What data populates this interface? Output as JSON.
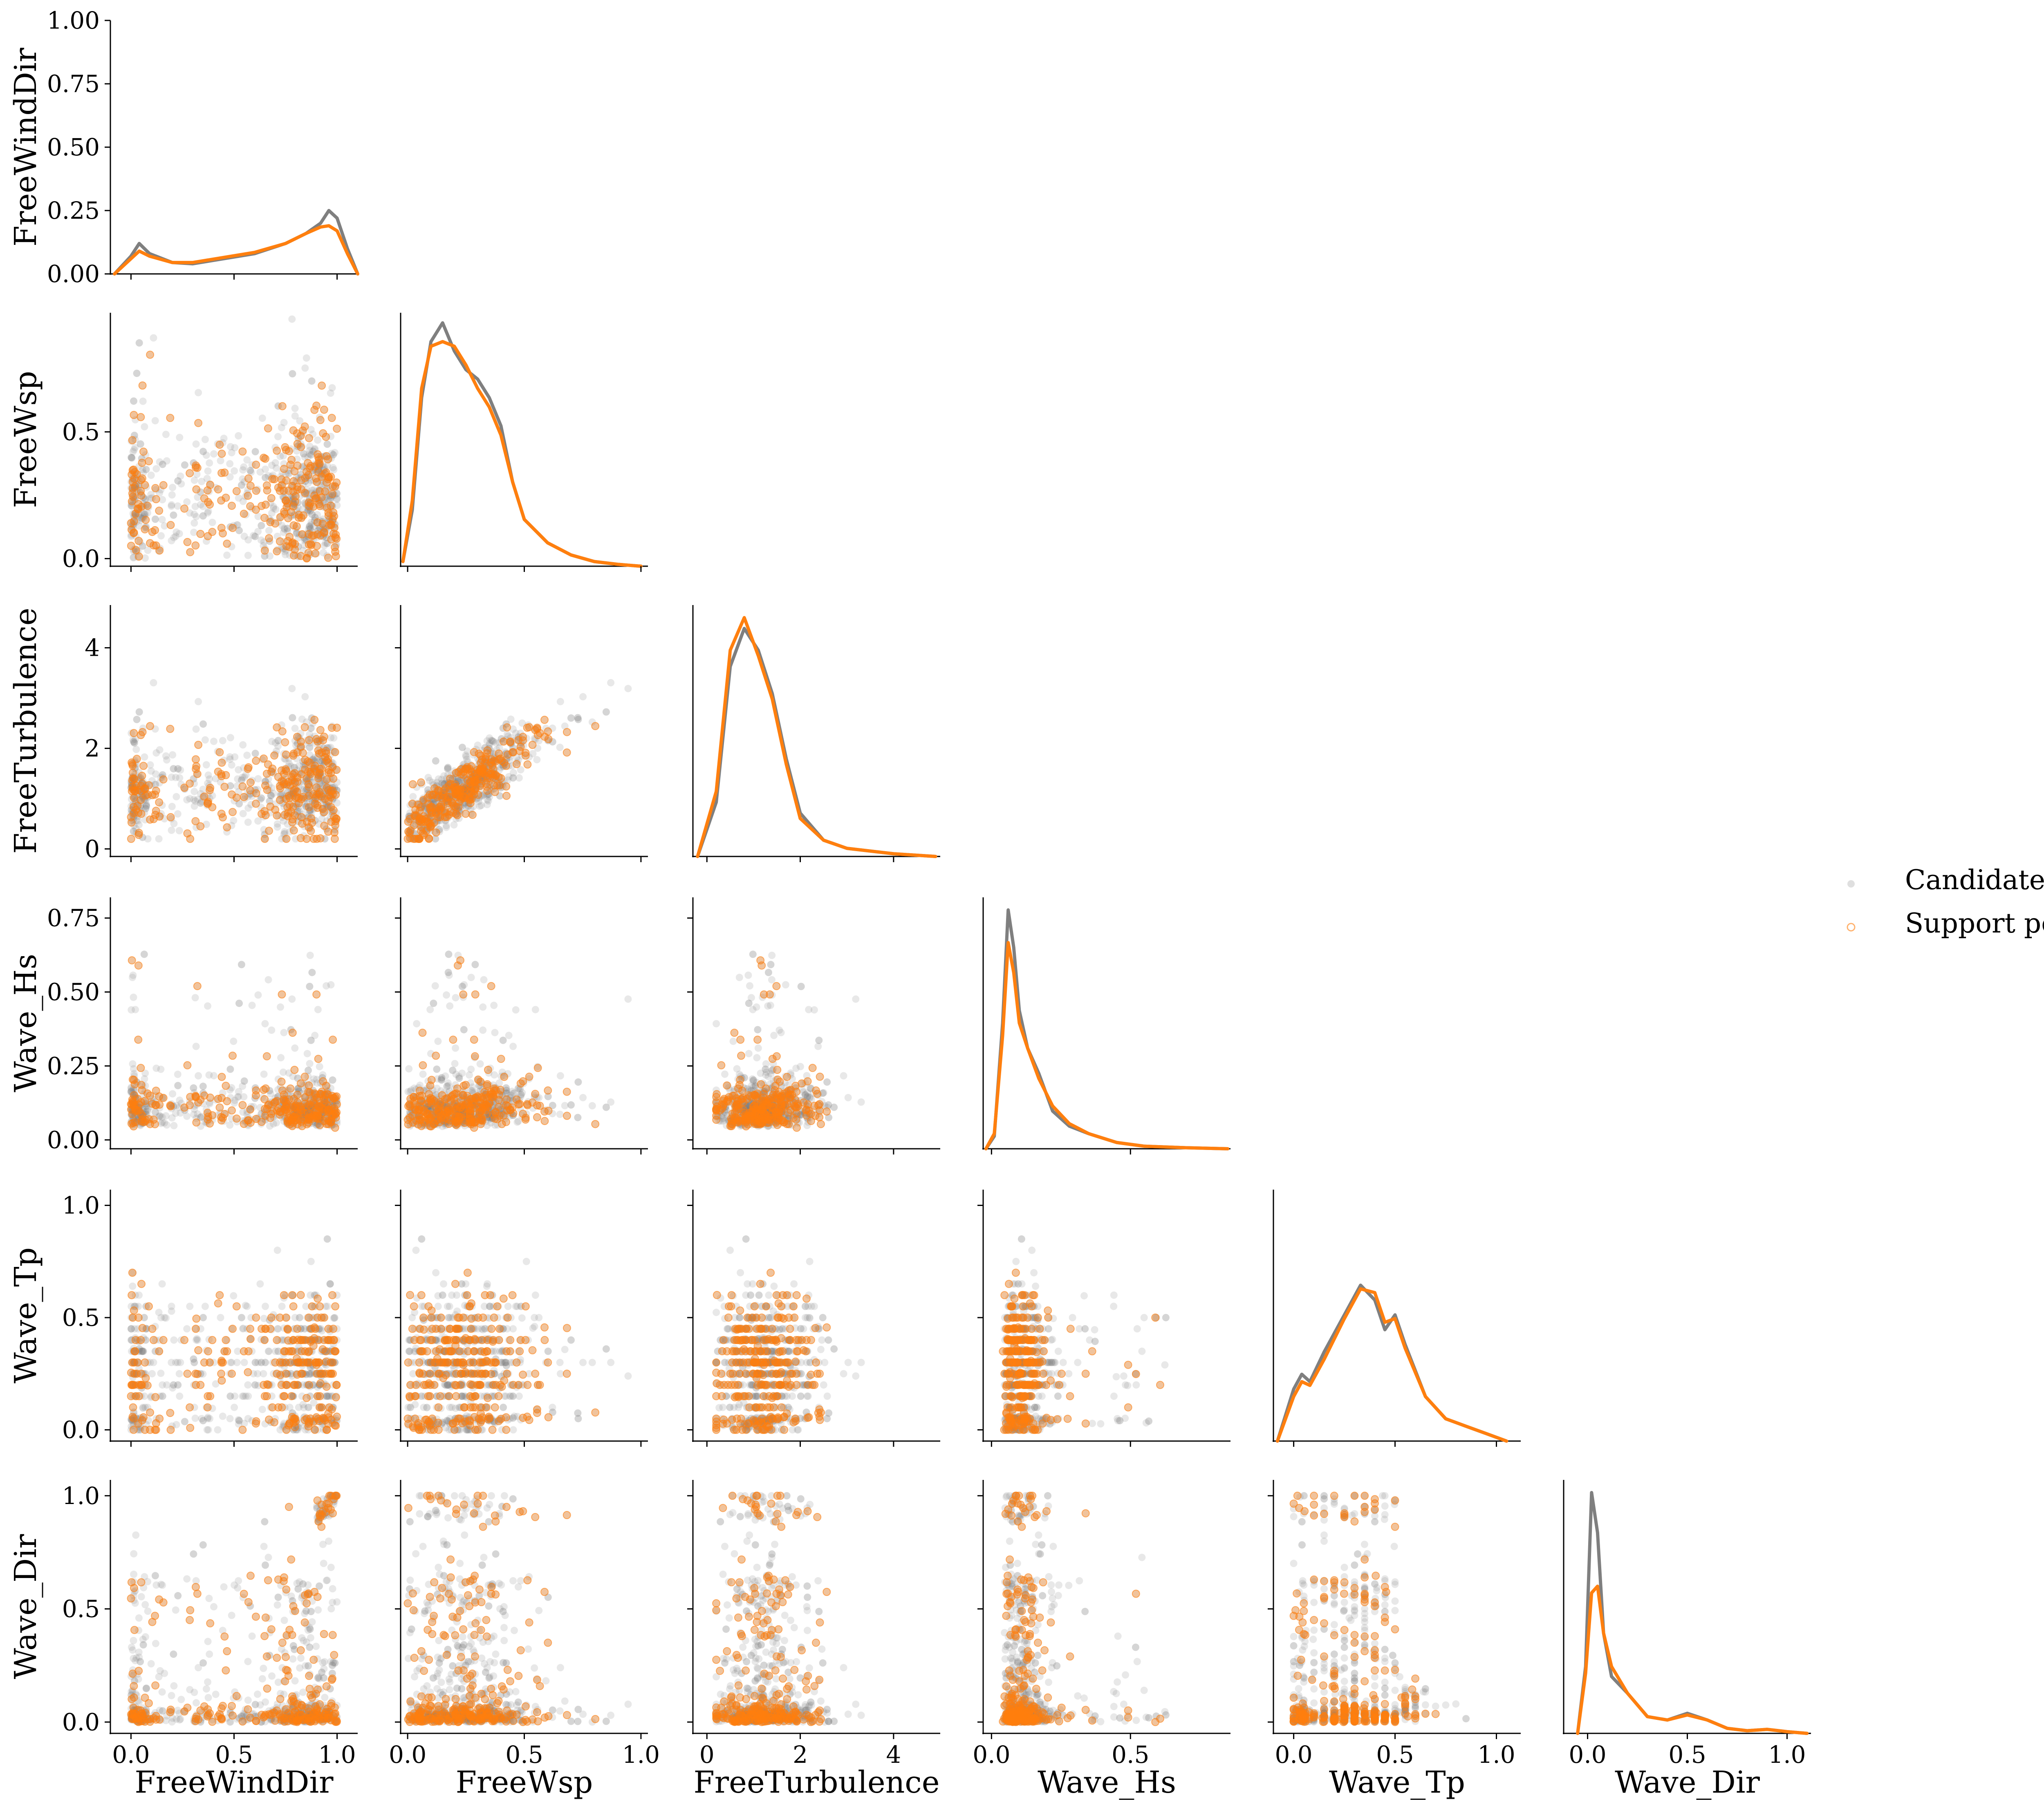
{
  "chart_data": {
    "type": "scatter",
    "title": "",
    "variables": [
      {
        "name": "FreeWindDir",
        "range": [
          -0.1,
          1.1
        ],
        "ticks": [
          "0.0",
          "0.5",
          "1.0"
        ],
        "tick_values": [
          0,
          0.5,
          1.0
        ]
      },
      {
        "name": "FreeWsp",
        "range": [
          -0.03,
          1.03
        ],
        "ticks": [
          "0.0",
          "0.5",
          "1.0"
        ],
        "tick_values": [
          0,
          0.5,
          1.0
        ]
      },
      {
        "name": "FreeTurbulence",
        "range": [
          -0.3,
          5.0
        ],
        "ticks": [
          "0",
          "2",
          "4"
        ],
        "tick_values": [
          0,
          2,
          4
        ]
      },
      {
        "name": "Wave_Hs",
        "range": [
          -0.03,
          0.86
        ],
        "ticks": [
          "0.0",
          "0.5"
        ],
        "tick_values": [
          0,
          0.5
        ]
      },
      {
        "name": "Wave_Tp",
        "range": [
          -0.1,
          1.12
        ],
        "ticks": [
          "0.0",
          "0.5",
          "1.0"
        ],
        "tick_values": [
          0,
          0.5,
          1.0
        ]
      },
      {
        "name": "Wave_Dir",
        "range": [
          -0.12,
          1.12
        ],
        "ticks": [
          "0.0",
          "0.5",
          "1.0"
        ],
        "tick_values": [
          0,
          0.5,
          1.0
        ]
      }
    ],
    "row_axes": [
      {
        "range": [
          0,
          1.0
        ],
        "ticks": [
          "0.00",
          "0.25",
          "0.50",
          "0.75",
          "1.00"
        ],
        "tick_values": [
          0,
          0.25,
          0.5,
          0.75,
          1.0
        ]
      },
      {
        "range": [
          -0.03,
          0.97
        ],
        "ticks": [
          "0.0",
          "0.5"
        ],
        "tick_values": [
          0,
          0.5
        ]
      },
      {
        "range": [
          -0.15,
          4.85
        ],
        "ticks": [
          "0",
          "2",
          "4"
        ],
        "tick_values": [
          0,
          2,
          4
        ]
      },
      {
        "range": [
          -0.03,
          0.82
        ],
        "ticks": [
          "0.00",
          "0.25",
          "0.50",
          "0.75"
        ],
        "tick_values": [
          0,
          0.25,
          0.5,
          0.75
        ]
      },
      {
        "range": [
          -0.05,
          1.07
        ],
        "ticks": [
          "0.0",
          "0.5",
          "1.0"
        ],
        "tick_values": [
          0,
          0.5,
          1.0
        ]
      },
      {
        "range": [
          -0.05,
          1.07
        ],
        "ticks": [
          "0.0",
          "0.5",
          "1.0"
        ],
        "tick_values": [
          0,
          0.5,
          1.0
        ]
      }
    ],
    "legend": {
      "placement": "right",
      "entries": [
        {
          "label": "Candidate",
          "color": "#7f7f7f"
        },
        {
          "label": "Support points",
          "color": "#ff7f0e"
        }
      ]
    },
    "series": [
      {
        "name": "Candidate",
        "color": "#7f7f7f"
      },
      {
        "name": "Support points",
        "color": "#ff7f0e"
      }
    ],
    "diagonal_kde": [
      {
        "variable": "FreeWindDir",
        "candidate": [
          [
            -0.08,
            0
          ],
          [
            0.0,
            0.07
          ],
          [
            0.04,
            0.12
          ],
          [
            0.09,
            0.08
          ],
          [
            0.2,
            0.045
          ],
          [
            0.3,
            0.04
          ],
          [
            0.45,
            0.06
          ],
          [
            0.6,
            0.08
          ],
          [
            0.75,
            0.12
          ],
          [
            0.85,
            0.16
          ],
          [
            0.92,
            0.2
          ],
          [
            0.96,
            0.25
          ],
          [
            1.0,
            0.22
          ],
          [
            1.05,
            0.1
          ],
          [
            1.1,
            0.0
          ]
        ],
        "support": [
          [
            -0.08,
            0
          ],
          [
            0.0,
            0.06
          ],
          [
            0.04,
            0.09
          ],
          [
            0.09,
            0.07
          ],
          [
            0.2,
            0.045
          ],
          [
            0.3,
            0.045
          ],
          [
            0.45,
            0.065
          ],
          [
            0.6,
            0.085
          ],
          [
            0.75,
            0.12
          ],
          [
            0.85,
            0.16
          ],
          [
            0.92,
            0.185
          ],
          [
            0.96,
            0.19
          ],
          [
            1.0,
            0.17
          ],
          [
            1.05,
            0.08
          ],
          [
            1.1,
            0.0
          ]
        ]
      },
      {
        "variable": "FreeWsp",
        "candidate": [
          [
            -0.02,
            0.005
          ],
          [
            0.02,
            0.06
          ],
          [
            0.06,
            0.18
          ],
          [
            0.1,
            0.24
          ],
          [
            0.15,
            0.26
          ],
          [
            0.2,
            0.23
          ],
          [
            0.25,
            0.21
          ],
          [
            0.3,
            0.2
          ],
          [
            0.35,
            0.18
          ],
          [
            0.4,
            0.15
          ],
          [
            0.45,
            0.09
          ],
          [
            0.5,
            0.05
          ],
          [
            0.6,
            0.025
          ],
          [
            0.7,
            0.012
          ],
          [
            0.8,
            0.005
          ],
          [
            0.9,
            0.002
          ],
          [
            1.0,
            0.0
          ]
        ],
        "support": [
          [
            -0.02,
            0.005
          ],
          [
            0.02,
            0.07
          ],
          [
            0.06,
            0.19
          ],
          [
            0.1,
            0.235
          ],
          [
            0.15,
            0.24
          ],
          [
            0.2,
            0.235
          ],
          [
            0.25,
            0.215
          ],
          [
            0.3,
            0.19
          ],
          [
            0.35,
            0.17
          ],
          [
            0.4,
            0.14
          ],
          [
            0.45,
            0.09
          ],
          [
            0.5,
            0.05
          ],
          [
            0.6,
            0.025
          ],
          [
            0.7,
            0.012
          ],
          [
            0.8,
            0.005
          ],
          [
            0.9,
            0.002
          ],
          [
            1.0,
            0.0
          ]
        ]
      },
      {
        "variable": "FreeTurbulence",
        "candidate": [
          [
            -0.2,
            0
          ],
          [
            0.2,
            0.1
          ],
          [
            0.5,
            0.35
          ],
          [
            0.8,
            0.42
          ],
          [
            1.1,
            0.38
          ],
          [
            1.4,
            0.3
          ],
          [
            1.7,
            0.18
          ],
          [
            2.0,
            0.08
          ],
          [
            2.5,
            0.03
          ],
          [
            3.0,
            0.015
          ],
          [
            4.0,
            0.005
          ],
          [
            4.9,
            0.0
          ]
        ],
        "support": [
          [
            -0.2,
            0
          ],
          [
            0.2,
            0.12
          ],
          [
            0.5,
            0.38
          ],
          [
            0.8,
            0.44
          ],
          [
            1.1,
            0.37
          ],
          [
            1.4,
            0.29
          ],
          [
            1.7,
            0.17
          ],
          [
            2.0,
            0.07
          ],
          [
            2.5,
            0.03
          ],
          [
            3.0,
            0.015
          ],
          [
            4.0,
            0.005
          ],
          [
            4.9,
            0.0
          ]
        ]
      },
      {
        "variable": "Wave_Hs",
        "candidate": [
          [
            -0.02,
            0.0
          ],
          [
            0.01,
            0.05
          ],
          [
            0.04,
            0.5
          ],
          [
            0.06,
            0.95
          ],
          [
            0.08,
            0.8
          ],
          [
            0.1,
            0.55
          ],
          [
            0.13,
            0.4
          ],
          [
            0.17,
            0.3
          ],
          [
            0.22,
            0.15
          ],
          [
            0.28,
            0.09
          ],
          [
            0.35,
            0.06
          ],
          [
            0.45,
            0.025
          ],
          [
            0.55,
            0.01
          ],
          [
            0.7,
            0.004
          ],
          [
            0.85,
            0.0
          ]
        ],
        "support": [
          [
            -0.02,
            0.0
          ],
          [
            0.01,
            0.06
          ],
          [
            0.04,
            0.45
          ],
          [
            0.06,
            0.82
          ],
          [
            0.08,
            0.7
          ],
          [
            0.1,
            0.5
          ],
          [
            0.13,
            0.4
          ],
          [
            0.17,
            0.28
          ],
          [
            0.22,
            0.17
          ],
          [
            0.28,
            0.1
          ],
          [
            0.35,
            0.06
          ],
          [
            0.45,
            0.025
          ],
          [
            0.55,
            0.01
          ],
          [
            0.7,
            0.004
          ],
          [
            0.85,
            0.0
          ]
        ]
      },
      {
        "variable": "Wave_Tp",
        "candidate": [
          [
            -0.08,
            0.0
          ],
          [
            0.0,
            0.07
          ],
          [
            0.04,
            0.09
          ],
          [
            0.08,
            0.08
          ],
          [
            0.15,
            0.12
          ],
          [
            0.25,
            0.17
          ],
          [
            0.33,
            0.21
          ],
          [
            0.4,
            0.19
          ],
          [
            0.45,
            0.15
          ],
          [
            0.5,
            0.17
          ],
          [
            0.55,
            0.13
          ],
          [
            0.65,
            0.06
          ],
          [
            0.75,
            0.03
          ],
          [
            0.85,
            0.02
          ],
          [
            0.95,
            0.01
          ],
          [
            1.05,
            0.0
          ]
        ],
        "support": [
          [
            -0.08,
            0.0
          ],
          [
            0.0,
            0.06
          ],
          [
            0.04,
            0.08
          ],
          [
            0.08,
            0.075
          ],
          [
            0.15,
            0.11
          ],
          [
            0.25,
            0.165
          ],
          [
            0.33,
            0.205
          ],
          [
            0.4,
            0.2
          ],
          [
            0.45,
            0.16
          ],
          [
            0.5,
            0.165
          ],
          [
            0.55,
            0.125
          ],
          [
            0.65,
            0.06
          ],
          [
            0.75,
            0.03
          ],
          [
            0.85,
            0.02
          ],
          [
            0.95,
            0.01
          ],
          [
            1.05,
            0.0
          ]
        ]
      },
      {
        "variable": "Wave_Dir",
        "candidate": [
          [
            -0.05,
            0.0
          ],
          [
            -0.01,
            0.2
          ],
          [
            0.02,
            0.72
          ],
          [
            0.05,
            0.6
          ],
          [
            0.08,
            0.3
          ],
          [
            0.12,
            0.17
          ],
          [
            0.2,
            0.12
          ],
          [
            0.3,
            0.05
          ],
          [
            0.4,
            0.04
          ],
          [
            0.5,
            0.06
          ],
          [
            0.6,
            0.04
          ],
          [
            0.7,
            0.015
          ],
          [
            0.8,
            0.008
          ],
          [
            0.9,
            0.012
          ],
          [
            1.0,
            0.005
          ],
          [
            1.1,
            0.0
          ]
        ],
        "support": [
          [
            -0.05,
            0.0
          ],
          [
            -0.01,
            0.18
          ],
          [
            0.02,
            0.42
          ],
          [
            0.05,
            0.44
          ],
          [
            0.08,
            0.3
          ],
          [
            0.12,
            0.2
          ],
          [
            0.2,
            0.12
          ],
          [
            0.3,
            0.05
          ],
          [
            0.4,
            0.04
          ],
          [
            0.5,
            0.055
          ],
          [
            0.6,
            0.04
          ],
          [
            0.7,
            0.015
          ],
          [
            0.8,
            0.008
          ],
          [
            0.9,
            0.012
          ],
          [
            1.0,
            0.005
          ],
          [
            1.1,
            0.0
          ]
        ]
      }
    ],
    "row0_kde_ylim": [
      0,
      1.0
    ],
    "kde_peak_scale": [
      1.0,
      0.96,
      0.95,
      0.95,
      0.62,
      0.95
    ],
    "kde_peak_max": [
      1.0,
      0.26,
      0.44,
      0.95,
      0.21,
      0.72
    ]
  }
}
